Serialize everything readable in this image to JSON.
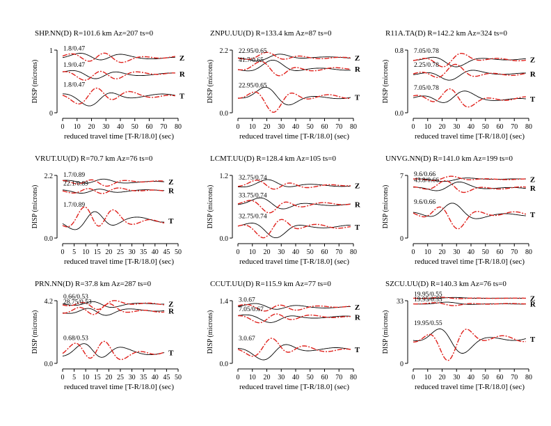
{
  "colors": {
    "observed": "#000000",
    "synthetic": "#e0201b",
    "annotation": "#d87a14"
  },
  "chart_data": [
    {
      "type": "line",
      "title": "SHP.NN(D) R=101.6 km Az=207 ts=0",
      "xlabel": "reduced travel time [T-R/18.0] (sec)",
      "ylabel": "DISP (microns)",
      "xlim": [
        0,
        80
      ],
      "xticks": [
        0,
        10,
        20,
        30,
        40,
        50,
        60,
        70,
        80
      ],
      "x_end": 78,
      "ytick_top": "1",
      "ytick_bottom": "0",
      "traces": [
        {
          "component": "Z",
          "annotation": "1.8/0.47",
          "level": 0.88,
          "amp": 0.1,
          "lag": 0
        },
        {
          "component": "R",
          "annotation": "1.9/0.47",
          "level": 0.62,
          "amp": 0.1,
          "lag": 1
        },
        {
          "component": "T",
          "annotation": "1.8/0.47",
          "level": 0.27,
          "amp": 0.14,
          "lag": 2
        }
      ]
    },
    {
      "type": "line",
      "title": "ZNPU.UU(D) R=133.4 km Az=87 ts=0",
      "xlabel": "reduced travel time [T-R/18.0] (sec)",
      "ylabel": "DISP (microns)",
      "xlim": [
        0,
        80
      ],
      "xticks": [
        0,
        10,
        20,
        30,
        40,
        50,
        60,
        70,
        80
      ],
      "x_end": 78,
      "ytick_top": "2.2",
      "ytick_bottom": "0.0",
      "traces": [
        {
          "component": "Z",
          "annotation": "22.95/0.65",
          "level": 0.88,
          "amp": 0.06,
          "lag": 3
        },
        {
          "component": "R",
          "annotation": "41.7/0.65",
          "level": 0.7,
          "amp": 0.1,
          "lag": 4
        },
        {
          "component": "T",
          "annotation": "22.95/0.65",
          "level": 0.25,
          "amp": 0.15,
          "lag": 5
        }
      ]
    },
    {
      "type": "line",
      "title": "R11A.TA(D) R=142.2 km Az=324 ts=0",
      "xlabel": "reduced travel time [T-R/18.0] (sec)",
      "ylabel": "DISP (microns)",
      "xlim": [
        0,
        80
      ],
      "xticks": [
        0,
        10,
        20,
        30,
        40,
        50,
        60,
        70,
        80
      ],
      "x_end": 78,
      "ytick_top": "0.8",
      "ytick_bottom": "0.0",
      "traces": [
        {
          "component": "Z",
          "annotation": "7.05/0.78",
          "level": 0.85,
          "amp": 0.09,
          "lag": 6
        },
        {
          "component": "R",
          "annotation": "2.25/0.78",
          "level": 0.62,
          "amp": 0.1,
          "lag": 7
        },
        {
          "component": "T",
          "annotation": "7.05/0.78",
          "level": 0.22,
          "amp": 0.14,
          "lag": 8
        }
      ]
    },
    {
      "type": "line",
      "title": "VRUT.UU(D) R=70.7 km Az=76 ts=0",
      "xlabel": "reduced travel time [T-R/18.0] (sec)",
      "ylabel": "DISP (microns)",
      "xlim": [
        0,
        50
      ],
      "xticks": [
        0,
        5,
        10,
        15,
        20,
        25,
        30,
        35,
        40,
        45,
        50
      ],
      "x_end": 44,
      "ytick_top": "2.2",
      "ytick_bottom": "0.0",
      "traces": [
        {
          "component": "Z",
          "annotation": "1.7/0.89",
          "level": 0.9,
          "amp": 0.06,
          "lag": 9
        },
        {
          "component": "R",
          "annotation": "22.1/0.89",
          "level": 0.76,
          "amp": 0.06,
          "lag": 10
        },
        {
          "component": "T",
          "annotation": "1.7/0.89",
          "level": 0.28,
          "amp": 0.22,
          "lag": 11
        }
      ]
    },
    {
      "type": "line",
      "title": "LCMT.UU(D) R=128.4 km Az=105 ts=0",
      "xlabel": "reduced travel time [T-R/18.0] (sec)",
      "ylabel": "DISP (microns)",
      "xlim": [
        0,
        80
      ],
      "xticks": [
        0,
        10,
        20,
        30,
        40,
        50,
        60,
        70,
        80
      ],
      "x_end": 78,
      "ytick_top": "1.2",
      "ytick_bottom": "0.0",
      "traces": [
        {
          "component": "Z",
          "annotation": "32.75/0.74",
          "level": 0.84,
          "amp": 0.08,
          "lag": 12
        },
        {
          "component": "R",
          "annotation": "33.75/0.74",
          "level": 0.54,
          "amp": 0.1,
          "lag": 13
        },
        {
          "component": "T",
          "annotation": "32.75/0.74",
          "level": 0.18,
          "amp": 0.13,
          "lag": 14
        }
      ]
    },
    {
      "type": "line",
      "title": "UNVG.NN(D) R=141.0 km Az=199 ts=0",
      "xlabel": "reduced travel time [T-R/18.0] (sec)",
      "ylabel": "DISP (microns)",
      "xlim": [
        0,
        80
      ],
      "xticks": [
        0,
        10,
        20,
        30,
        40,
        50,
        60,
        70,
        80
      ],
      "x_end": 78,
      "ytick_top": "7",
      "ytick_bottom": "0",
      "traces": [
        {
          "component": "Z",
          "annotation": "9.6/0.66",
          "level": 0.94,
          "amp": 0.03,
          "lag": 15
        },
        {
          "component": "R",
          "annotation": "43.8/0.66",
          "level": 0.8,
          "amp": 0.08,
          "lag": 16
        },
        {
          "component": "T",
          "annotation": "9.6/0.66",
          "level": 0.38,
          "amp": 0.16,
          "lag": 17
        }
      ]
    },
    {
      "type": "line",
      "title": "PRN.NN(D) R=37.8 km Az=287 ts=0",
      "xlabel": "reduced travel time [T-R/18.0] (sec)",
      "ylabel": "DISP (microns)",
      "xlim": [
        0,
        50
      ],
      "xticks": [
        0,
        5,
        10,
        15,
        20,
        25,
        30,
        35,
        40,
        45,
        50
      ],
      "x_end": 44,
      "ytick_top": "4.2",
      "ytick_bottom": "0.0",
      "traces": [
        {
          "component": "Z",
          "annotation": "0.66/0.53",
          "level": 0.95,
          "amp": 0.07,
          "lag": 18
        },
        {
          "component": "R",
          "annotation": "28.75/0.53",
          "level": 0.84,
          "amp": 0.1,
          "lag": 19
        },
        {
          "component": "T",
          "annotation": "0.68/0.53",
          "level": 0.17,
          "amp": 0.2,
          "lag": 20
        }
      ]
    },
    {
      "type": "line",
      "title": "CCUT.UU(D) R=115.9 km Az=77 ts=0",
      "xlabel": "reduced travel time [T-R/18.0] (sec)",
      "ylabel": "DISP (microns)",
      "xlim": [
        0,
        80
      ],
      "xticks": [
        0,
        10,
        20,
        30,
        40,
        50,
        60,
        70,
        80
      ],
      "x_end": 78,
      "ytick_top": "1.4",
      "ytick_bottom": "0.0",
      "traces": [
        {
          "component": "Z",
          "annotation": "3.0.67",
          "level": 0.9,
          "amp": 0.07,
          "lag": 21
        },
        {
          "component": "R",
          "annotation": "7.05/0.67",
          "level": 0.74,
          "amp": 0.08,
          "lag": 22
        },
        {
          "component": "T",
          "annotation": "3.0.67",
          "level": 0.22,
          "amp": 0.14,
          "lag": 23
        }
      ]
    },
    {
      "type": "line",
      "title": "SZCU.UU(D) R=140.3 km Az=76 ts=0",
      "xlabel": "reduced travel time [T-R/18.0] (sec)",
      "ylabel": "DISP (microns)",
      "xlim": [
        0,
        80
      ],
      "xticks": [
        0,
        10,
        20,
        30,
        40,
        50,
        60,
        70,
        80
      ],
      "x_end": 78,
      "ytick_top": "33",
      "ytick_bottom": "0",
      "traces": [
        {
          "component": "Z",
          "annotation": "19.95/0.55",
          "level": 1.04,
          "amp": 0.01,
          "lag": 24
        },
        {
          "component": "R",
          "annotation": "19.95/0.55",
          "level": 0.95,
          "amp": 0.02,
          "lag": 25
        },
        {
          "component": "T",
          "annotation": "19.95/0.55",
          "level": 0.39,
          "amp": 0.22,
          "lag": 26
        }
      ]
    }
  ]
}
